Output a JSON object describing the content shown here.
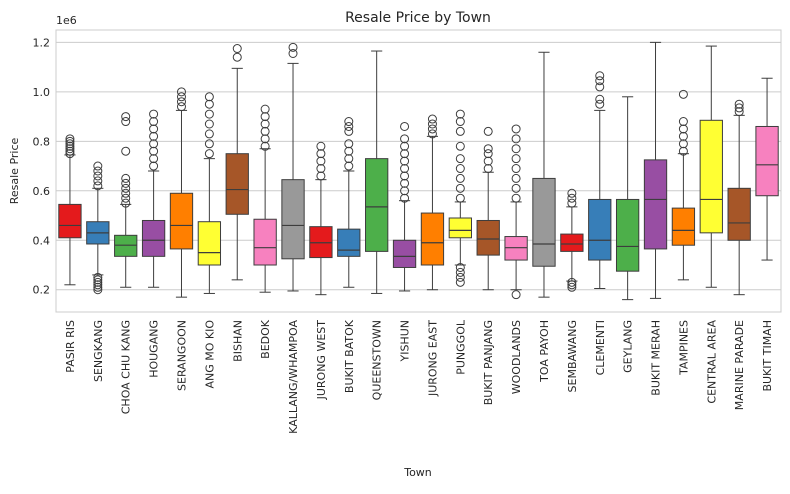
{
  "chart_data": {
    "type": "boxplot",
    "title": "Resale Price by Town",
    "xlabel": "Town",
    "ylabel": "Resale Price",
    "y_scale_label": "1e6",
    "ylim": [
      0.11,
      1.25
    ],
    "yticks": [
      "0.2",
      "0.4",
      "0.6",
      "0.8",
      "1.0",
      "1.2"
    ],
    "ytick_values": [
      0.2,
      0.4,
      0.6,
      0.8,
      1.0,
      1.2
    ],
    "grid": true,
    "boxes": [
      {
        "town": "PASIR RIS",
        "color": "#e41a1c",
        "whisker_low": 0.22,
        "q1": 0.41,
        "median": 0.46,
        "q3": 0.545,
        "whisker_high": 0.745,
        "outliers": [
          0.75,
          0.76,
          0.77,
          0.78,
          0.79,
          0.8,
          0.81
        ]
      },
      {
        "town": "SENGKANG",
        "color": "#377eb8",
        "whisker_low": 0.26,
        "q1": 0.385,
        "median": 0.43,
        "q3": 0.475,
        "whisker_high": 0.61,
        "outliers": [
          0.62,
          0.64,
          0.66,
          0.68,
          0.7,
          0.25,
          0.24,
          0.23,
          0.22,
          0.21,
          0.2
        ]
      },
      {
        "town": "CHOA CHU KANG",
        "color": "#4daf4a",
        "whisker_low": 0.21,
        "q1": 0.335,
        "median": 0.38,
        "q3": 0.42,
        "whisker_high": 0.545,
        "outliers": [
          0.55,
          0.57,
          0.59,
          0.61,
          0.63,
          0.65,
          0.76,
          0.88,
          0.9
        ]
      },
      {
        "town": "HOUGANG",
        "color": "#984ea3",
        "whisker_low": 0.21,
        "q1": 0.335,
        "median": 0.4,
        "q3": 0.48,
        "whisker_high": 0.68,
        "outliers": [
          0.7,
          0.73,
          0.76,
          0.79,
          0.82,
          0.85,
          0.88,
          0.91
        ]
      },
      {
        "town": "SERANGOON",
        "color": "#ff7f00",
        "whisker_low": 0.17,
        "q1": 0.365,
        "median": 0.46,
        "q3": 0.59,
        "whisker_high": 0.925,
        "outliers": [
          0.94,
          0.96,
          0.98,
          1.0
        ]
      },
      {
        "town": "ANG MO KIO",
        "color": "#ffff33",
        "whisker_low": 0.185,
        "q1": 0.3,
        "median": 0.35,
        "q3": 0.475,
        "whisker_high": 0.73,
        "outliers": [
          0.75,
          0.79,
          0.83,
          0.87,
          0.91,
          0.95,
          0.98
        ]
      },
      {
        "town": "BISHAN",
        "color": "#a65628",
        "whisker_low": 0.24,
        "q1": 0.505,
        "median": 0.605,
        "q3": 0.75,
        "whisker_high": 1.095,
        "outliers": [
          1.14,
          1.175
        ]
      },
      {
        "town": "BEDOK",
        "color": "#f781bf",
        "whisker_low": 0.19,
        "q1": 0.3,
        "median": 0.37,
        "q3": 0.485,
        "whisker_high": 0.77,
        "outliers": [
          0.78,
          0.81,
          0.84,
          0.87,
          0.9,
          0.93
        ]
      },
      {
        "town": "KALLANG/WHAMPOA",
        "color": "#999999",
        "whisker_low": 0.195,
        "q1": 0.325,
        "median": 0.46,
        "q3": 0.645,
        "whisker_high": 1.115,
        "outliers": [
          1.155,
          1.18
        ]
      },
      {
        "town": "JURONG WEST",
        "color": "#e41a1c",
        "whisker_low": 0.18,
        "q1": 0.33,
        "median": 0.39,
        "q3": 0.455,
        "whisker_high": 0.645,
        "outliers": [
          0.66,
          0.69,
          0.72,
          0.75,
          0.78
        ]
      },
      {
        "town": "BUKIT BATOK",
        "color": "#377eb8",
        "whisker_low": 0.21,
        "q1": 0.335,
        "median": 0.36,
        "q3": 0.445,
        "whisker_high": 0.68,
        "outliers": [
          0.7,
          0.73,
          0.76,
          0.79,
          0.84,
          0.86,
          0.88
        ]
      },
      {
        "town": "QUEENSTOWN",
        "color": "#4daf4a",
        "whisker_low": 0.185,
        "q1": 0.355,
        "median": 0.535,
        "q3": 0.73,
        "whisker_high": 1.165,
        "outliers": []
      },
      {
        "town": "YISHUN",
        "color": "#984ea3",
        "whisker_low": 0.195,
        "q1": 0.29,
        "median": 0.335,
        "q3": 0.4,
        "whisker_high": 0.56,
        "outliers": [
          0.57,
          0.6,
          0.63,
          0.66,
          0.69,
          0.72,
          0.75,
          0.78,
          0.81,
          0.86
        ]
      },
      {
        "town": "JURONG EAST",
        "color": "#ff7f00",
        "whisker_low": 0.2,
        "q1": 0.3,
        "median": 0.39,
        "q3": 0.51,
        "whisker_high": 0.82,
        "outliers": [
          0.83,
          0.85,
          0.87,
          0.89
        ]
      },
      {
        "town": "PUNGGOL",
        "color": "#ffff33",
        "whisker_low": 0.3,
        "q1": 0.41,
        "median": 0.44,
        "q3": 0.49,
        "whisker_high": 0.555,
        "outliers": [
          0.57,
          0.61,
          0.65,
          0.69,
          0.73,
          0.78,
          0.84,
          0.88,
          0.91,
          0.29,
          0.27,
          0.25,
          0.23
        ]
      },
      {
        "town": "BUKIT PANJANG",
        "color": "#a65628",
        "whisker_low": 0.2,
        "q1": 0.34,
        "median": 0.405,
        "q3": 0.48,
        "whisker_high": 0.675,
        "outliers": [
          0.69,
          0.72,
          0.75,
          0.77,
          0.84
        ]
      },
      {
        "town": "WOODLANDS",
        "color": "#f781bf",
        "whisker_low": 0.2,
        "q1": 0.32,
        "median": 0.37,
        "q3": 0.415,
        "whisker_high": 0.555,
        "outliers": [
          0.57,
          0.61,
          0.65,
          0.69,
          0.73,
          0.77,
          0.81,
          0.85,
          0.18
        ]
      },
      {
        "town": "TOA PAYOH",
        "color": "#999999",
        "whisker_low": 0.17,
        "q1": 0.295,
        "median": 0.385,
        "q3": 0.65,
        "whisker_high": 1.16,
        "outliers": []
      },
      {
        "town": "SEMBAWANG",
        "color": "#e41a1c",
        "whisker_low": 0.235,
        "q1": 0.355,
        "median": 0.385,
        "q3": 0.425,
        "whisker_high": 0.535,
        "outliers": [
          0.55,
          0.57,
          0.59,
          0.23,
          0.22,
          0.21
        ]
      },
      {
        "town": "CLEMENTI",
        "color": "#377eb8",
        "whisker_low": 0.205,
        "q1": 0.32,
        "median": 0.4,
        "q3": 0.565,
        "whisker_high": 0.925,
        "outliers": [
          0.95,
          0.97,
          1.02,
          1.045,
          1.065
        ]
      },
      {
        "town": "GEYLANG",
        "color": "#4daf4a",
        "whisker_low": 0.16,
        "q1": 0.275,
        "median": 0.375,
        "q3": 0.565,
        "whisker_high": 0.98,
        "outliers": []
      },
      {
        "town": "BUKIT MERAH",
        "color": "#984ea3",
        "whisker_low": 0.165,
        "q1": 0.365,
        "median": 0.565,
        "q3": 0.725,
        "whisker_high": 1.2,
        "outliers": []
      },
      {
        "town": "TAMPINES",
        "color": "#ff7f00",
        "whisker_low": 0.24,
        "q1": 0.38,
        "median": 0.44,
        "q3": 0.53,
        "whisker_high": 0.75,
        "outliers": [
          0.76,
          0.79,
          0.82,
          0.85,
          0.88,
          0.99
        ]
      },
      {
        "town": "CENTRAL AREA",
        "color": "#ffff33",
        "whisker_low": 0.21,
        "q1": 0.43,
        "median": 0.565,
        "q3": 0.885,
        "whisker_high": 1.185,
        "outliers": []
      },
      {
        "town": "MARINE PARADE",
        "color": "#a65628",
        "whisker_low": 0.18,
        "q1": 0.4,
        "median": 0.47,
        "q3": 0.61,
        "whisker_high": 0.905,
        "outliers": [
          0.92,
          0.935,
          0.95
        ]
      },
      {
        "town": "BUKIT TIMAH",
        "color": "#f781bf",
        "whisker_low": 0.32,
        "q1": 0.58,
        "median": 0.705,
        "q3": 0.86,
        "whisker_high": 1.055,
        "outliers": []
      }
    ]
  }
}
